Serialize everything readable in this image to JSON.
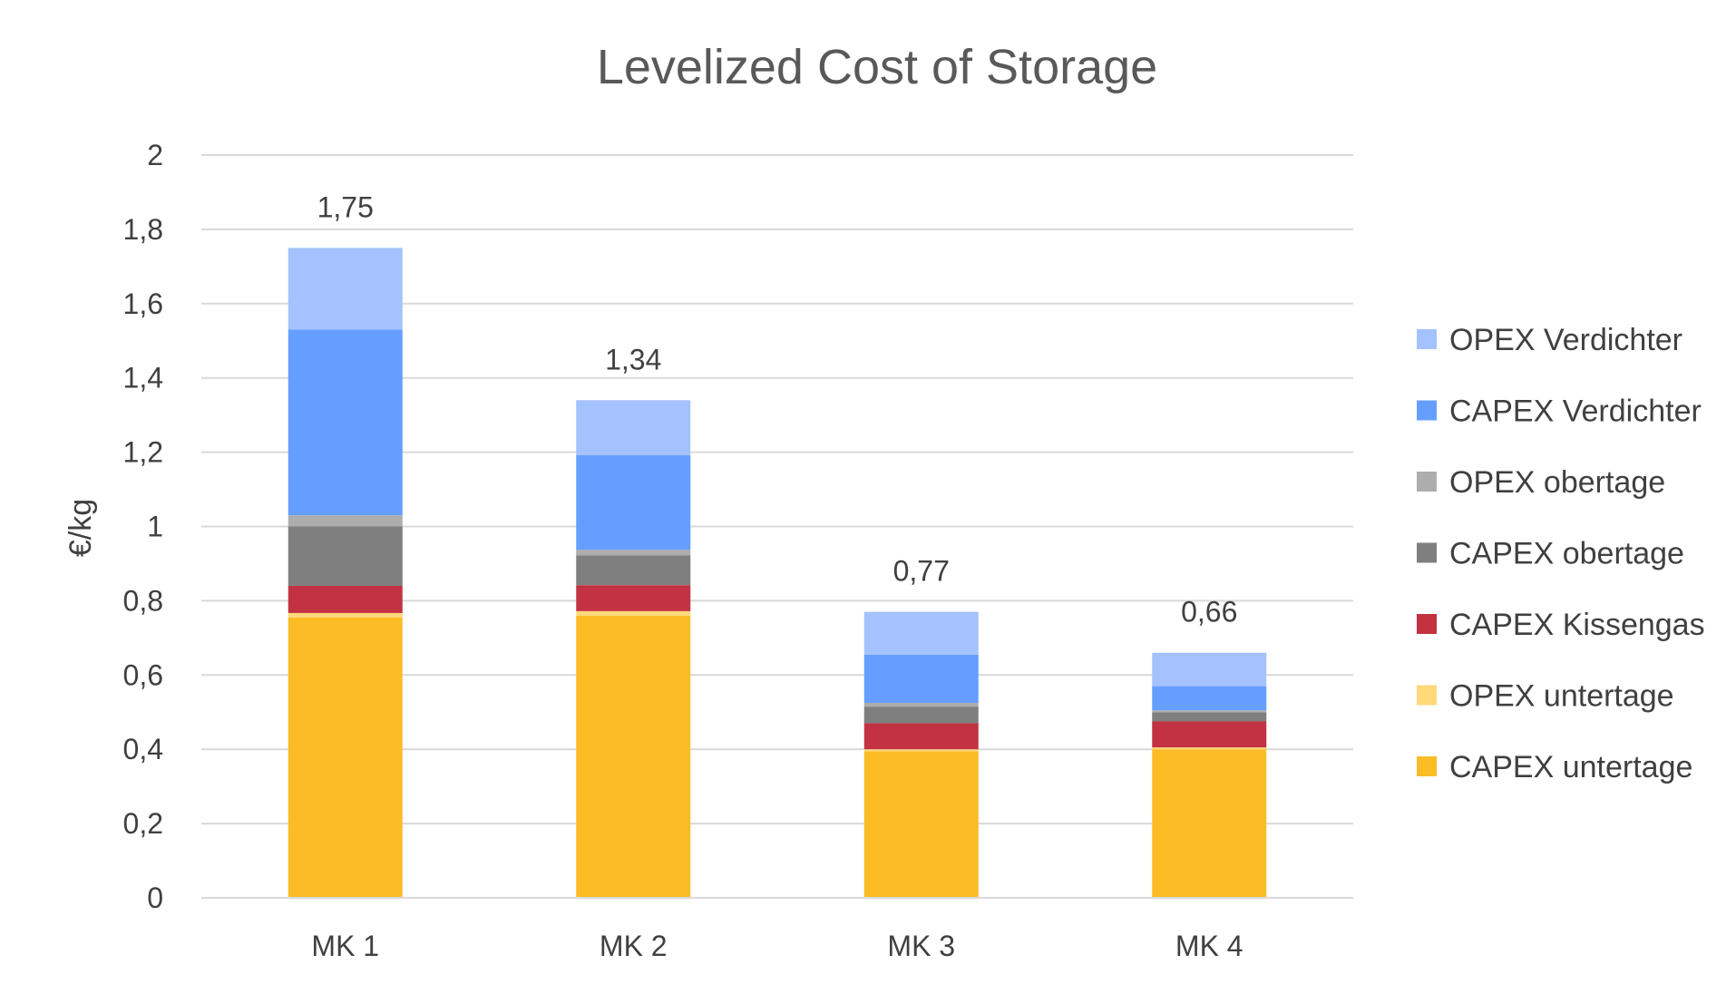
{
  "chart_data": {
    "type": "bar",
    "stacked": true,
    "title": "Levelized Cost of Storage",
    "xlabel": "",
    "ylabel": "€/kg",
    "ylim": [
      0,
      2
    ],
    "yticks": [
      0,
      0.2,
      0.4,
      0.6,
      0.8,
      1,
      1.2,
      1.4,
      1.6,
      1.8,
      2
    ],
    "ytick_labels": [
      "0",
      "0,2",
      "0,4",
      "0,6",
      "0,8",
      "1",
      "1,2",
      "1,4",
      "1,6",
      "1,8",
      "2"
    ],
    "grid": true,
    "legend_position": "right",
    "categories": [
      "MK 1",
      "MK 2",
      "MK 3",
      "MK 4"
    ],
    "totals": [
      1.75,
      1.34,
      0.77,
      0.66
    ],
    "total_labels": [
      "1,75",
      "1,34",
      "0,77",
      "0,66"
    ],
    "series": [
      {
        "name": "CAPEX untertage",
        "color": "#FBBC26",
        "values": [
          0.755,
          0.76,
          0.395,
          0.4
        ]
      },
      {
        "name": "OPEX untertage",
        "color": "#FFD97A",
        "values": [
          0.012,
          0.012,
          0.005,
          0.005
        ]
      },
      {
        "name": "CAPEX Kissengas",
        "color": "#C33242",
        "values": [
          0.073,
          0.07,
          0.07,
          0.07
        ]
      },
      {
        "name": "CAPEX obertage",
        "color": "#7F7F7F",
        "values": [
          0.16,
          0.08,
          0.045,
          0.025
        ]
      },
      {
        "name": "OPEX obertage",
        "color": "#ADADAD",
        "values": [
          0.03,
          0.015,
          0.01,
          0.005
        ]
      },
      {
        "name": "CAPEX Verdichter",
        "color": "#669EFF",
        "values": [
          0.5,
          0.255,
          0.13,
          0.065
        ]
      },
      {
        "name": "OPEX Verdichter",
        "color": "#A4C2FF",
        "values": [
          0.22,
          0.148,
          0.115,
          0.09
        ]
      }
    ]
  }
}
